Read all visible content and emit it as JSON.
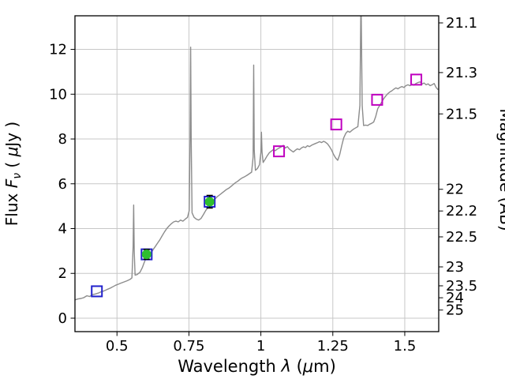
{
  "chart_data": {
    "type": "line",
    "title": "",
    "xlabel": "Wavelength λ (μm)",
    "ylabel_left": "Flux Fν ( μJy )",
    "ylabel_right": "Magnitude (AB)",
    "xlabel_parts": [
      {
        "t": "Wavelength ",
        "i": false
      },
      {
        "t": "λ",
        "i": true
      },
      {
        "t": " (",
        "i": false
      },
      {
        "t": "μ",
        "i": true
      },
      {
        "t": "m)",
        "i": false
      }
    ],
    "ylabel_left_parts": [
      {
        "t": "Flux ",
        "i": false
      },
      {
        "t": "F",
        "i": true
      },
      {
        "t": "ν",
        "i": true,
        "sub": true
      },
      {
        "t": " ( ",
        "i": false
      },
      {
        "t": "μ",
        "i": true
      },
      {
        "t": "Jy )",
        "i": false
      }
    ],
    "ylabel_right_parts": [
      {
        "t": "Magnitude (AB)",
        "i": false
      }
    ],
    "xlim": [
      0.354,
      1.618
    ],
    "ylim": [
      -0.6,
      13.5
    ],
    "x_ticks": [
      0.5,
      0.75,
      1.0,
      1.25,
      1.5
    ],
    "x_tick_labels": [
      "0.5",
      "0.75",
      "1",
      "1.25",
      "1.5"
    ],
    "y_ticks_left": [
      0,
      2,
      4,
      6,
      8,
      10,
      12
    ],
    "y_tick_left_labels": [
      "0",
      "2",
      "4",
      "6",
      "8",
      "10",
      "12"
    ],
    "y_ticks_right_mags": [
      21.1,
      21.3,
      21.5,
      22,
      22.2,
      22.5,
      23,
      23.5,
      24,
      25
    ],
    "y_tick_right_labels": [
      "21.1",
      "21.3",
      "21.5",
      "22",
      "22.2",
      "22.5",
      "23",
      "23.5",
      "24",
      "25"
    ],
    "mag_zeropoint": 23.9,
    "grid": true,
    "colors": {
      "spectrum": "#8c8c8c",
      "blue_square": "#2222cc",
      "magenta_square": "#bf00bf",
      "green_point": "#2fbf2f",
      "error_bar": "#000000",
      "grid": "#c7c7c7",
      "frame": "#000000"
    },
    "series": [
      {
        "name": "model-spectrum",
        "type": "line",
        "color_key": "spectrum",
        "points": [
          [
            0.355,
            0.82
          ],
          [
            0.365,
            0.86
          ],
          [
            0.375,
            0.88
          ],
          [
            0.385,
            0.92
          ],
          [
            0.395,
            1.0
          ],
          [
            0.405,
            0.97
          ],
          [
            0.415,
            1.05
          ],
          [
            0.425,
            1.08
          ],
          [
            0.435,
            1.12
          ],
          [
            0.445,
            1.18
          ],
          [
            0.455,
            1.22
          ],
          [
            0.465,
            1.28
          ],
          [
            0.475,
            1.33
          ],
          [
            0.485,
            1.4
          ],
          [
            0.495,
            1.47
          ],
          [
            0.505,
            1.52
          ],
          [
            0.515,
            1.57
          ],
          [
            0.525,
            1.62
          ],
          [
            0.535,
            1.67
          ],
          [
            0.545,
            1.73
          ],
          [
            0.552,
            1.8
          ],
          [
            0.556,
            3.2
          ],
          [
            0.558,
            5.05
          ],
          [
            0.56,
            3.0
          ],
          [
            0.563,
            1.92
          ],
          [
            0.57,
            1.95
          ],
          [
            0.58,
            2.05
          ],
          [
            0.588,
            2.25
          ],
          [
            0.595,
            2.5
          ],
          [
            0.602,
            2.7
          ],
          [
            0.61,
            2.8
          ],
          [
            0.618,
            2.9
          ],
          [
            0.625,
            3.05
          ],
          [
            0.633,
            3.2
          ],
          [
            0.641,
            3.35
          ],
          [
            0.649,
            3.5
          ],
          [
            0.657,
            3.68
          ],
          [
            0.665,
            3.85
          ],
          [
            0.673,
            4.0
          ],
          [
            0.681,
            4.12
          ],
          [
            0.689,
            4.22
          ],
          [
            0.697,
            4.3
          ],
          [
            0.705,
            4.33
          ],
          [
            0.713,
            4.3
          ],
          [
            0.721,
            4.38
          ],
          [
            0.729,
            4.33
          ],
          [
            0.737,
            4.42
          ],
          [
            0.745,
            4.5
          ],
          [
            0.751,
            4.8
          ],
          [
            0.754,
            8.0
          ],
          [
            0.756,
            12.1
          ],
          [
            0.758,
            8.0
          ],
          [
            0.761,
            4.7
          ],
          [
            0.768,
            4.5
          ],
          [
            0.776,
            4.42
          ],
          [
            0.784,
            4.38
          ],
          [
            0.792,
            4.45
          ],
          [
            0.8,
            4.62
          ],
          [
            0.808,
            4.8
          ],
          [
            0.816,
            4.95
          ],
          [
            0.824,
            5.12
          ],
          [
            0.832,
            5.22
          ],
          [
            0.84,
            5.32
          ],
          [
            0.848,
            5.42
          ],
          [
            0.856,
            5.5
          ],
          [
            0.864,
            5.58
          ],
          [
            0.872,
            5.66
          ],
          [
            0.88,
            5.74
          ],
          [
            0.888,
            5.8
          ],
          [
            0.896,
            5.88
          ],
          [
            0.904,
            5.97
          ],
          [
            0.912,
            6.05
          ],
          [
            0.92,
            6.12
          ],
          [
            0.928,
            6.2
          ],
          [
            0.936,
            6.27
          ],
          [
            0.944,
            6.32
          ],
          [
            0.952,
            6.38
          ],
          [
            0.96,
            6.45
          ],
          [
            0.968,
            6.52
          ],
          [
            0.973,
            7.2
          ],
          [
            0.975,
            11.3
          ],
          [
            0.977,
            7.5
          ],
          [
            0.981,
            6.6
          ],
          [
            0.988,
            6.68
          ],
          [
            0.995,
            6.85
          ],
          [
            1.0,
            7.4
          ],
          [
            1.002,
            8.3
          ],
          [
            1.004,
            7.4
          ],
          [
            1.008,
            6.95
          ],
          [
            1.015,
            7.1
          ],
          [
            1.022,
            7.25
          ],
          [
            1.029,
            7.38
          ],
          [
            1.036,
            7.45
          ],
          [
            1.043,
            7.52
          ],
          [
            1.05,
            7.48
          ],
          [
            1.057,
            7.55
          ],
          [
            1.064,
            7.6
          ],
          [
            1.071,
            7.65
          ],
          [
            1.078,
            7.72
          ],
          [
            1.085,
            7.6
          ],
          [
            1.092,
            7.66
          ],
          [
            1.099,
            7.55
          ],
          [
            1.106,
            7.48
          ],
          [
            1.113,
            7.42
          ],
          [
            1.12,
            7.5
          ],
          [
            1.127,
            7.56
          ],
          [
            1.134,
            7.52
          ],
          [
            1.141,
            7.6
          ],
          [
            1.148,
            7.65
          ],
          [
            1.155,
            7.62
          ],
          [
            1.162,
            7.7
          ],
          [
            1.169,
            7.66
          ],
          [
            1.176,
            7.72
          ],
          [
            1.183,
            7.76
          ],
          [
            1.19,
            7.8
          ],
          [
            1.197,
            7.84
          ],
          [
            1.204,
            7.88
          ],
          [
            1.211,
            7.84
          ],
          [
            1.218,
            7.9
          ],
          [
            1.225,
            7.85
          ],
          [
            1.232,
            7.78
          ],
          [
            1.239,
            7.65
          ],
          [
            1.246,
            7.5
          ],
          [
            1.253,
            7.3
          ],
          [
            1.26,
            7.15
          ],
          [
            1.267,
            7.05
          ],
          [
            1.274,
            7.3
          ],
          [
            1.281,
            7.7
          ],
          [
            1.288,
            8.05
          ],
          [
            1.295,
            8.25
          ],
          [
            1.302,
            8.35
          ],
          [
            1.309,
            8.3
          ],
          [
            1.316,
            8.38
          ],
          [
            1.323,
            8.45
          ],
          [
            1.33,
            8.5
          ],
          [
            1.337,
            8.55
          ],
          [
            1.344,
            9.5
          ],
          [
            1.348,
            14.5
          ],
          [
            1.352,
            9.5
          ],
          [
            1.357,
            8.6
          ],
          [
            1.364,
            8.62
          ],
          [
            1.371,
            8.6
          ],
          [
            1.378,
            8.66
          ],
          [
            1.385,
            8.7
          ],
          [
            1.392,
            8.76
          ],
          [
            1.399,
            9.0
          ],
          [
            1.406,
            9.35
          ],
          [
            1.413,
            9.5
          ],
          [
            1.42,
            9.65
          ],
          [
            1.427,
            9.8
          ],
          [
            1.434,
            9.92
          ],
          [
            1.441,
            10.02
          ],
          [
            1.448,
            10.1
          ],
          [
            1.455,
            10.15
          ],
          [
            1.462,
            10.22
          ],
          [
            1.469,
            10.28
          ],
          [
            1.476,
            10.24
          ],
          [
            1.483,
            10.3
          ],
          [
            1.49,
            10.34
          ],
          [
            1.497,
            10.3
          ],
          [
            1.504,
            10.38
          ],
          [
            1.511,
            10.42
          ],
          [
            1.518,
            10.38
          ],
          [
            1.525,
            10.44
          ],
          [
            1.532,
            10.4
          ],
          [
            1.539,
            10.48
          ],
          [
            1.546,
            10.52
          ],
          [
            1.553,
            10.55
          ],
          [
            1.56,
            10.45
          ],
          [
            1.567,
            10.5
          ],
          [
            1.574,
            10.42
          ],
          [
            1.581,
            10.46
          ],
          [
            1.588,
            10.38
          ],
          [
            1.595,
            10.42
          ],
          [
            1.602,
            10.48
          ],
          [
            1.609,
            10.3
          ],
          [
            1.616,
            10.2
          ]
        ]
      },
      {
        "name": "photometry-squares-blue",
        "type": "scatter",
        "marker": "square-open",
        "color_key": "blue_square",
        "points": [
          [
            0.43,
            1.2
          ],
          [
            0.603,
            2.85
          ],
          [
            0.822,
            5.2
          ]
        ]
      },
      {
        "name": "photometry-squares-magenta",
        "type": "scatter",
        "marker": "square-open",
        "color_key": "magenta_square",
        "points": [
          [
            1.063,
            7.45
          ],
          [
            1.262,
            8.65
          ],
          [
            1.404,
            9.75
          ],
          [
            1.54,
            10.65
          ]
        ]
      },
      {
        "name": "observed-flux-points",
        "type": "scatter",
        "marker": "circle",
        "color_key": "green_point",
        "error_color_key": "error_bar",
        "points": [
          [
            0.603,
            2.85,
            0.22
          ],
          [
            0.822,
            5.2,
            0.28
          ]
        ]
      }
    ]
  }
}
